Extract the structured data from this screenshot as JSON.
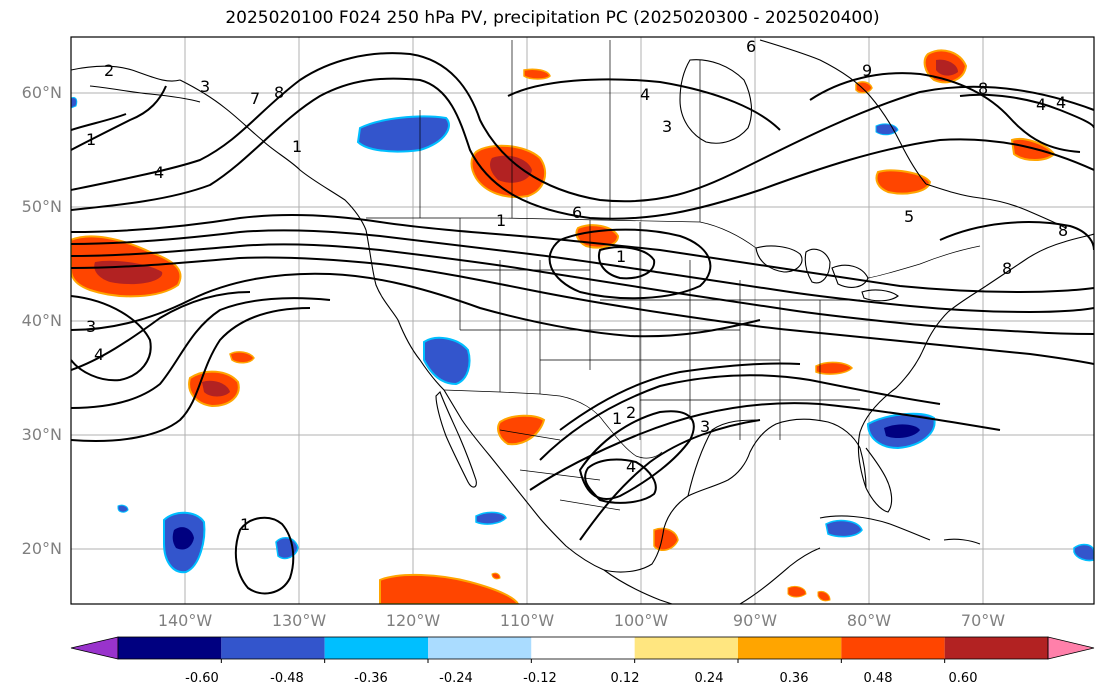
{
  "title": "2025020100 F024 250 hPa PV, precipitation PC (2025020300 - 2025020400)",
  "map": {
    "lat_labels": [
      "60°N",
      "50°N",
      "40°N",
      "30°N",
      "20°N"
    ],
    "lon_labels": [
      "140°W",
      "130°W",
      "120°W",
      "110°W",
      "100°W",
      "90°W",
      "80°W",
      "70°W"
    ],
    "label_color": "#808080",
    "grid_color": "#b0b0b0"
  },
  "contour_labels": [
    "2",
    "3",
    "1",
    "7",
    "8",
    "1",
    "4",
    "3",
    "4",
    "6",
    "4",
    "3",
    "6",
    "1",
    "1",
    "5",
    "8",
    "8",
    "4",
    "1",
    "2",
    "3",
    "4",
    "1",
    "9",
    "8",
    "4"
  ],
  "colorbar": {
    "ticks": [
      "-0.60",
      "-0.48",
      "-0.36",
      "-0.24",
      "-0.12",
      "0.12",
      "0.24",
      "0.36",
      "0.48",
      "0.60"
    ],
    "colors": [
      "#9933cc",
      "#000080",
      "#3355cc",
      "#00bfff",
      "#aadcff",
      "#ffffff",
      "#ffe680",
      "#ffa500",
      "#ff4500",
      "#b22222",
      "#ff80aa"
    ]
  }
}
